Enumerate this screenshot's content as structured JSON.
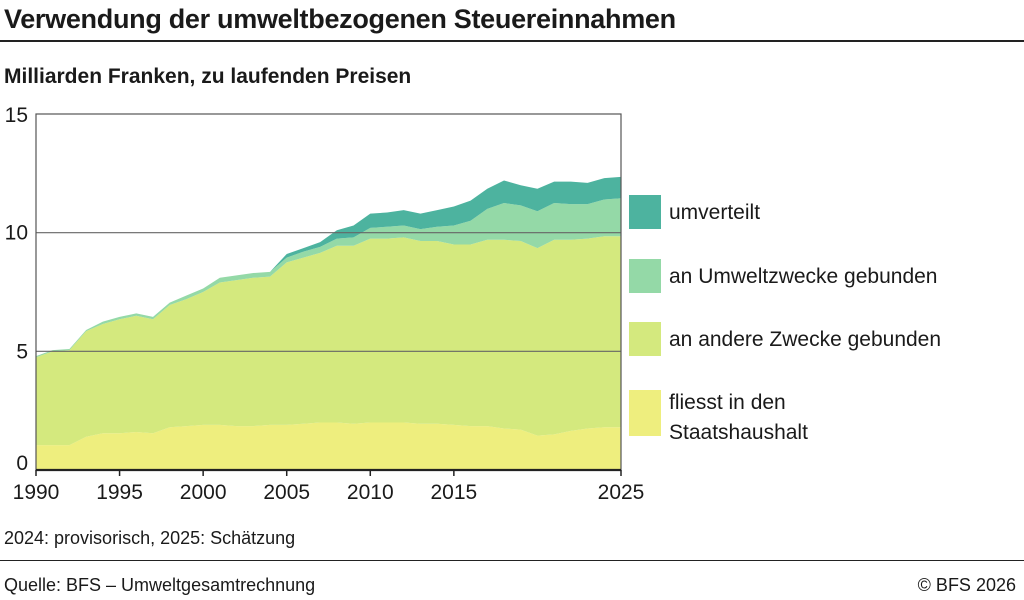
{
  "header": {
    "title": "Verwendung der umweltbezogenen Steuereinnahmen",
    "subtitle": "Milliarden Franken, zu laufenden Preisen"
  },
  "footer": {
    "note": "2024: provisorisch, 2025: Schätzung",
    "source": "Quelle: BFS – Umweltgesamtrechnung",
    "copyright": "© BFS 2026"
  },
  "chart_data": {
    "type": "area",
    "stacked": true,
    "title": "Verwendung der umweltbezogenen Steuereinnahmen",
    "subtitle": "Milliarden Franken, zu laufenden Preisen",
    "ylim": [
      0,
      15
    ],
    "xlim": [
      1990,
      2025
    ],
    "yticks": [
      0,
      5,
      10,
      15
    ],
    "xticks": [
      1990,
      1995,
      2000,
      2005,
      2010,
      2015,
      2025
    ],
    "grid": "horizontal",
    "legend_placement": "right",
    "x": [
      1990,
      1991,
      1992,
      1993,
      1994,
      1995,
      1996,
      1997,
      1998,
      1999,
      2000,
      2001,
      2002,
      2003,
      2004,
      2005,
      2006,
      2007,
      2008,
      2009,
      2010,
      2011,
      2012,
      2013,
      2014,
      2015,
      2016,
      2017,
      2018,
      2019,
      2020,
      2021,
      2022,
      2023,
      2024,
      2025
    ],
    "series": [
      {
        "name": "fliesst in den Staatshaushalt",
        "color": "#eeee7e",
        "values": [
          1.05,
          1.05,
          1.05,
          1.4,
          1.55,
          1.55,
          1.6,
          1.55,
          1.8,
          1.85,
          1.9,
          1.9,
          1.85,
          1.85,
          1.9,
          1.9,
          1.95,
          2.0,
          2.0,
          1.95,
          2.0,
          2.0,
          2.0,
          1.95,
          1.95,
          1.9,
          1.85,
          1.85,
          1.75,
          1.7,
          1.45,
          1.5,
          1.65,
          1.75,
          1.8,
          1.8
        ]
      },
      {
        "name": "an andere Zwecke gebunden",
        "color": "#d4e97e",
        "values": [
          3.7,
          3.95,
          4.0,
          4.45,
          4.6,
          4.8,
          4.9,
          4.8,
          5.15,
          5.35,
          5.6,
          6.0,
          6.15,
          6.25,
          6.25,
          6.85,
          7.0,
          7.15,
          7.45,
          7.5,
          7.75,
          7.75,
          7.8,
          7.7,
          7.7,
          7.6,
          7.65,
          7.85,
          7.95,
          7.95,
          7.9,
          8.2,
          8.05,
          8.0,
          8.05,
          8.05
        ]
      },
      {
        "name": "an Umweltzwecke gebunden",
        "color": "#94d9a7",
        "values": [
          0.05,
          0.05,
          0.05,
          0.05,
          0.1,
          0.1,
          0.1,
          0.1,
          0.1,
          0.15,
          0.15,
          0.2,
          0.2,
          0.2,
          0.2,
          0.2,
          0.25,
          0.25,
          0.3,
          0.35,
          0.45,
          0.5,
          0.5,
          0.5,
          0.6,
          0.8,
          1.0,
          1.3,
          1.55,
          1.5,
          1.55,
          1.55,
          1.5,
          1.45,
          1.55,
          1.6
        ]
      },
      {
        "name": "umverteilt",
        "color": "#4db39f",
        "values": [
          0.0,
          0.0,
          0.0,
          0.0,
          0.0,
          0.0,
          0.0,
          0.0,
          0.0,
          0.0,
          0.0,
          0.0,
          0.0,
          0.0,
          0.0,
          0.15,
          0.15,
          0.2,
          0.35,
          0.5,
          0.6,
          0.6,
          0.65,
          0.65,
          0.7,
          0.8,
          0.85,
          0.85,
          0.95,
          0.85,
          0.95,
          0.9,
          0.95,
          0.9,
          0.9,
          0.9
        ]
      }
    ],
    "legend": [
      {
        "label": "umverteilt",
        "color": "#4db39f"
      },
      {
        "label": "an Umweltzwecke gebunden",
        "color": "#94d9a7"
      },
      {
        "label": "an andere Zwecke gebunden",
        "color": "#d4e97e"
      },
      {
        "label_lines": [
          "fliesst in den",
          "Staatshaushalt"
        ],
        "color": "#eeee7e"
      }
    ]
  }
}
